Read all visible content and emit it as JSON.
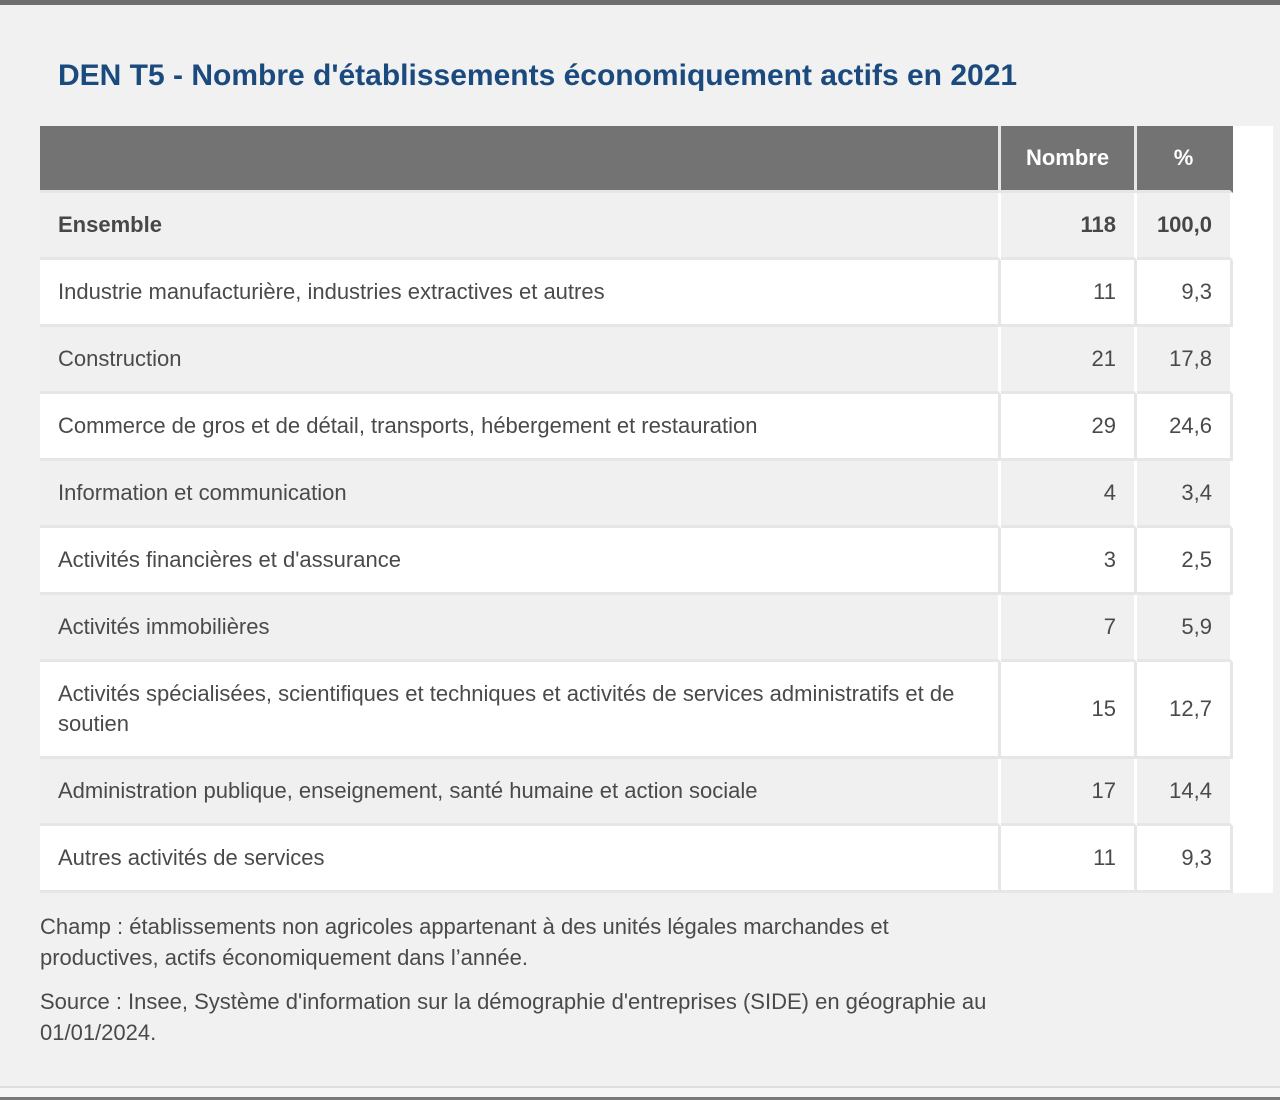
{
  "page": {
    "title": "DEN T5 - Nombre d'établissements économiquement actifs en 2021"
  },
  "table": {
    "header": {
      "label": "",
      "nombre": "Nombre",
      "percent": "%"
    },
    "rows": [
      {
        "label": "Ensemble",
        "nombre": "118",
        "percent": "100,0",
        "bold": true
      },
      {
        "label": "Industrie manufacturière, industries extractives et autres",
        "nombre": "11",
        "percent": "9,3"
      },
      {
        "label": "Construction",
        "nombre": "21",
        "percent": "17,8"
      },
      {
        "label": "Commerce de gros et de détail, transports, hébergement et restauration",
        "nombre": "29",
        "percent": "24,6"
      },
      {
        "label": "Information et communication",
        "nombre": "4",
        "percent": "3,4"
      },
      {
        "label": "Activités financières et d'assurance",
        "nombre": "3",
        "percent": "2,5"
      },
      {
        "label": "Activités immobilières",
        "nombre": "7",
        "percent": "5,9"
      },
      {
        "label": "Activités spécialisées, scientifiques et techniques et activités de services administratifs et de soutien",
        "nombre": "15",
        "percent": "12,7"
      },
      {
        "label": "Administration publique, enseignement, santé humaine et action sociale",
        "nombre": "17",
        "percent": "14,4"
      },
      {
        "label": "Autres activités de services",
        "nombre": "11",
        "percent": "9,3"
      }
    ]
  },
  "notes": {
    "champ": {
      "lines": [
        "Champ : établissements non agricoles appartenant à des unités légales marchandes et",
        "productives, actifs économiquement dans l’année."
      ]
    },
    "source": {
      "lines": [
        "Source : Insee, Système d'information sur la démographie d'entreprises (SIDE) en géographie au",
        "01/01/2024."
      ]
    }
  },
  "colors": {
    "title-blue": "#1b4a7e",
    "header-bg": "#737373",
    "row-alt-bg": "#f0f0f0",
    "page-bg": "#f1f1f1",
    "text": "#4a4a4a"
  }
}
